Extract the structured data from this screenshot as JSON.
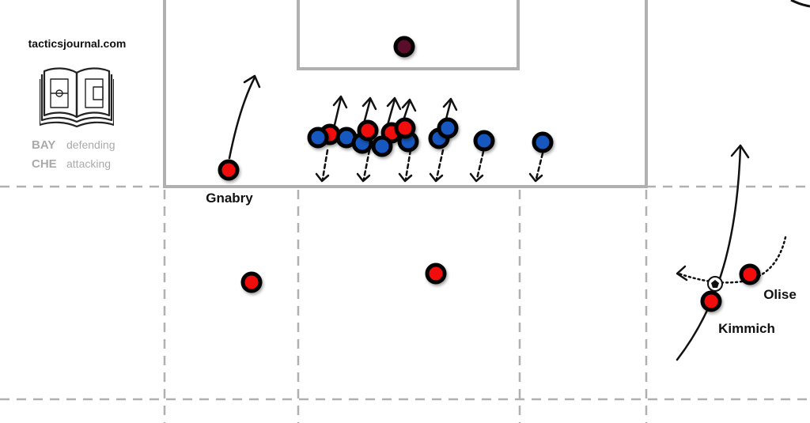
{
  "site": "tacticsjournal.com",
  "legend": [
    {
      "team": "BAY",
      "role": "defending"
    },
    {
      "team": "CHE",
      "role": "attacking"
    }
  ],
  "colors": {
    "team_red": "#f20f0f",
    "team_blue": "#1558c0",
    "goalkeeper": "#5a0f2a",
    "lines": "#b0b0b0",
    "legend_text": "#aaaaaa"
  },
  "players": [
    {
      "team": "red",
      "label": "Gnabry"
    },
    {
      "team": "red",
      "label": ""
    },
    {
      "team": "red",
      "label": ""
    },
    {
      "team": "red",
      "label": "Kimmich"
    },
    {
      "team": "red",
      "label": "Olise"
    },
    {
      "team": "red",
      "label": ""
    },
    {
      "team": "red",
      "label": ""
    },
    {
      "team": "red",
      "label": ""
    },
    {
      "team": "red",
      "label": ""
    },
    {
      "team": "blue",
      "label": ""
    },
    {
      "team": "blue",
      "label": ""
    },
    {
      "team": "blue",
      "label": ""
    },
    {
      "team": "blue",
      "label": ""
    },
    {
      "team": "blue",
      "label": ""
    },
    {
      "team": "blue",
      "label": ""
    },
    {
      "team": "blue",
      "label": ""
    },
    {
      "team": "blue",
      "label": ""
    },
    {
      "team": "blue",
      "label": ""
    },
    {
      "team": "goalkeeper",
      "label": ""
    }
  ],
  "icons": [
    "open-book-pitch-logo-icon",
    "football-icon"
  ]
}
